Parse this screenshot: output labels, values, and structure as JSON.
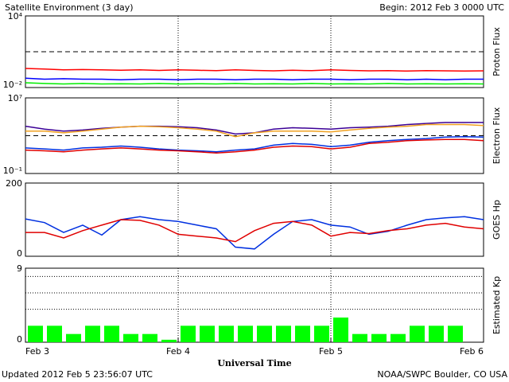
{
  "header": {
    "title": "Satellite Environment (3 day)",
    "begin": "Begin:  2012 Feb 3 0000 UTC"
  },
  "footer": {
    "updated": "Updated 2012 Feb  5 23:56:07 UTC",
    "source": "NOAA/SWPC Boulder, CO USA"
  },
  "chart_data": [
    {
      "type": "line",
      "ylabel": "Proton Flux",
      "log": true,
      "ylim": [
        0.01,
        10000
      ],
      "yticks": [
        {
          "value": 10000,
          "label": "10⁴"
        },
        {
          "value": 0.01,
          "label": "10⁻²"
        }
      ],
      "threshold": 10,
      "x": [
        0,
        3,
        6,
        9,
        12,
        15,
        18,
        21,
        24,
        27,
        30,
        33,
        36,
        39,
        42,
        45,
        48,
        51,
        54,
        57,
        60,
        63,
        66,
        69,
        72
      ],
      "series": [
        {
          "color": "#ff0000",
          "values": [
            0.4,
            0.35,
            0.3,
            0.32,
            0.3,
            0.28,
            0.3,
            0.27,
            0.3,
            0.28,
            0.26,
            0.3,
            0.27,
            0.25,
            0.28,
            0.26,
            0.3,
            0.27,
            0.25,
            0.26,
            0.24,
            0.26,
            0.25,
            0.24,
            0.25
          ]
        },
        {
          "color": "#0000ff",
          "values": [
            0.06,
            0.05,
            0.055,
            0.05,
            0.05,
            0.045,
            0.05,
            0.05,
            0.045,
            0.05,
            0.05,
            0.045,
            0.05,
            0.05,
            0.045,
            0.05,
            0.05,
            0.045,
            0.05,
            0.05,
            0.045,
            0.05,
            0.045,
            0.05,
            0.05
          ]
        },
        {
          "color": "#00ee00",
          "values": [
            0.025,
            0.022,
            0.02,
            0.022,
            0.02,
            0.021,
            0.02,
            0.022,
            0.02,
            0.021,
            0.02,
            0.022,
            0.02,
            0.021,
            0.02,
            0.022,
            0.02,
            0.021,
            0.02,
            0.022,
            0.02,
            0.021,
            0.02,
            0.021,
            0.02
          ]
        }
      ]
    },
    {
      "type": "line",
      "ylabel": "Electron Flux",
      "log": true,
      "ylim": [
        0.1,
        10000000
      ],
      "yticks": [
        {
          "value": 10000000,
          "label": "10⁷"
        },
        {
          "value": 0.1,
          "label": "10⁻¹"
        }
      ],
      "threshold": 1000,
      "x": [
        0,
        3,
        6,
        9,
        12,
        15,
        18,
        21,
        24,
        27,
        30,
        33,
        36,
        39,
        42,
        45,
        48,
        51,
        54,
        57,
        60,
        63,
        66,
        69,
        72
      ],
      "series": [
        {
          "color": "#3c0096",
          "values": [
            10000,
            5000,
            3000,
            4000,
            6000,
            8000,
            10000,
            10000,
            9000,
            7000,
            4000,
            1500,
            2000,
            5000,
            7000,
            6000,
            5000,
            7000,
            8000,
            10000,
            15000,
            20000,
            25000,
            25000,
            25000
          ]
        },
        {
          "color": "#f0a020",
          "values": [
            3000,
            3000,
            2000,
            3000,
            5000,
            8000,
            10000,
            9000,
            7000,
            5000,
            3000,
            800,
            2000,
            3000,
            3000,
            3000,
            2500,
            4000,
            6000,
            8000,
            10000,
            15000,
            15000,
            15000,
            12000
          ]
        },
        {
          "color": "#0030e0",
          "values": [
            50,
            40,
            30,
            50,
            60,
            80,
            60,
            40,
            30,
            25,
            20,
            30,
            40,
            100,
            150,
            120,
            70,
            100,
            200,
            300,
            400,
            500,
            700,
            800,
            700
          ]
        },
        {
          "color": "#e00000",
          "values": [
            30,
            25,
            20,
            30,
            40,
            50,
            40,
            30,
            25,
            20,
            15,
            20,
            30,
            60,
            80,
            70,
            40,
            60,
            150,
            200,
            300,
            350,
            400,
            400,
            300
          ]
        }
      ]
    },
    {
      "type": "line",
      "ylabel": "GOES Hp",
      "log": false,
      "ylim": [
        0,
        200
      ],
      "yticks": [
        200,
        0
      ],
      "x": [
        0,
        3,
        6,
        9,
        12,
        15,
        18,
        21,
        24,
        27,
        30,
        33,
        36,
        39,
        42,
        45,
        48,
        51,
        54,
        57,
        60,
        63,
        66,
        69,
        72
      ],
      "series": [
        {
          "color": "#0030e0",
          "values": [
            102,
            92,
            65,
            85,
            58,
            100,
            108,
            100,
            95,
            85,
            75,
            25,
            20,
            60,
            95,
            100,
            85,
            80,
            60,
            68,
            85,
            100,
            105,
            108,
            100
          ]
        },
        {
          "color": "#e00000",
          "values": [
            65,
            65,
            50,
            70,
            85,
            100,
            98,
            85,
            60,
            55,
            50,
            40,
            70,
            90,
            95,
            85,
            55,
            65,
            62,
            70,
            75,
            85,
            90,
            80,
            75
          ]
        }
      ]
    },
    {
      "type": "bar",
      "ylabel": "Estimated Kp",
      "ylim": [
        0,
        9
      ],
      "yticks": [
        9,
        0
      ],
      "ygrid": [
        4,
        6,
        8
      ],
      "color": "#00ff00",
      "xlabel": "Universal Time",
      "xlim": [
        0,
        72
      ],
      "xticks": [
        {
          "value": 0,
          "label": "Feb 3"
        },
        {
          "value": 24,
          "label": "Feb 4"
        },
        {
          "value": 48,
          "label": "Feb 5"
        },
        {
          "value": 72,
          "label": "Feb 6"
        }
      ],
      "x": [
        0,
        3,
        6,
        9,
        12,
        15,
        18,
        21,
        24,
        27,
        30,
        33,
        36,
        39,
        42,
        45,
        48,
        51,
        54,
        57,
        60,
        63,
        66,
        69
      ],
      "values": [
        2,
        2,
        1,
        2,
        2,
        1,
        1,
        0.3,
        2,
        2,
        2,
        2,
        2,
        2,
        2,
        2,
        3,
        1,
        1,
        1,
        2,
        2,
        2,
        null
      ]
    }
  ]
}
